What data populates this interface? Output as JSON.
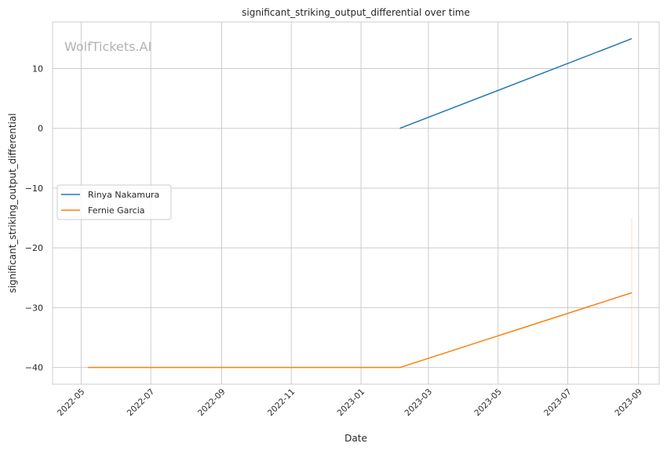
{
  "watermark": "WolfTickets.AI",
  "chart_data": {
    "type": "line",
    "title": "significant_striking_output_differential over time",
    "xlabel": "Date",
    "ylabel": "significant_striking_output_differential",
    "x_range": [
      "2022-04-06",
      "2023-09-19"
    ],
    "x_ticks": [
      "2022-05",
      "2022-07",
      "2022-09",
      "2022-11",
      "2023-01",
      "2023-03",
      "2023-05",
      "2023-07",
      "2023-09"
    ],
    "y_range": [
      -42.8,
      17.8
    ],
    "y_ticks": [
      10,
      0,
      -10,
      -20,
      -30,
      -40
    ],
    "y_tick_labels": [
      "10",
      "0",
      "−10",
      "−20",
      "−30",
      "−40"
    ],
    "grid": true,
    "legend_position": "center-left",
    "series": [
      {
        "name": "Rinya Nakamura",
        "color": "#1f77b4",
        "points": [
          {
            "x": "2023-02-04",
            "y": 0
          },
          {
            "x": "2023-08-26",
            "y": 15
          }
        ]
      },
      {
        "name": "Fernie Garcia",
        "color": "#ff7f0e",
        "points": [
          {
            "x": "2022-05-07",
            "y": -40
          },
          {
            "x": "2023-02-04",
            "y": -40
          },
          {
            "x": "2023-08-26",
            "y": -27.5
          }
        ],
        "band": {
          "x": "2023-08-26",
          "y_low": -40,
          "y_high": -15
        }
      }
    ]
  }
}
